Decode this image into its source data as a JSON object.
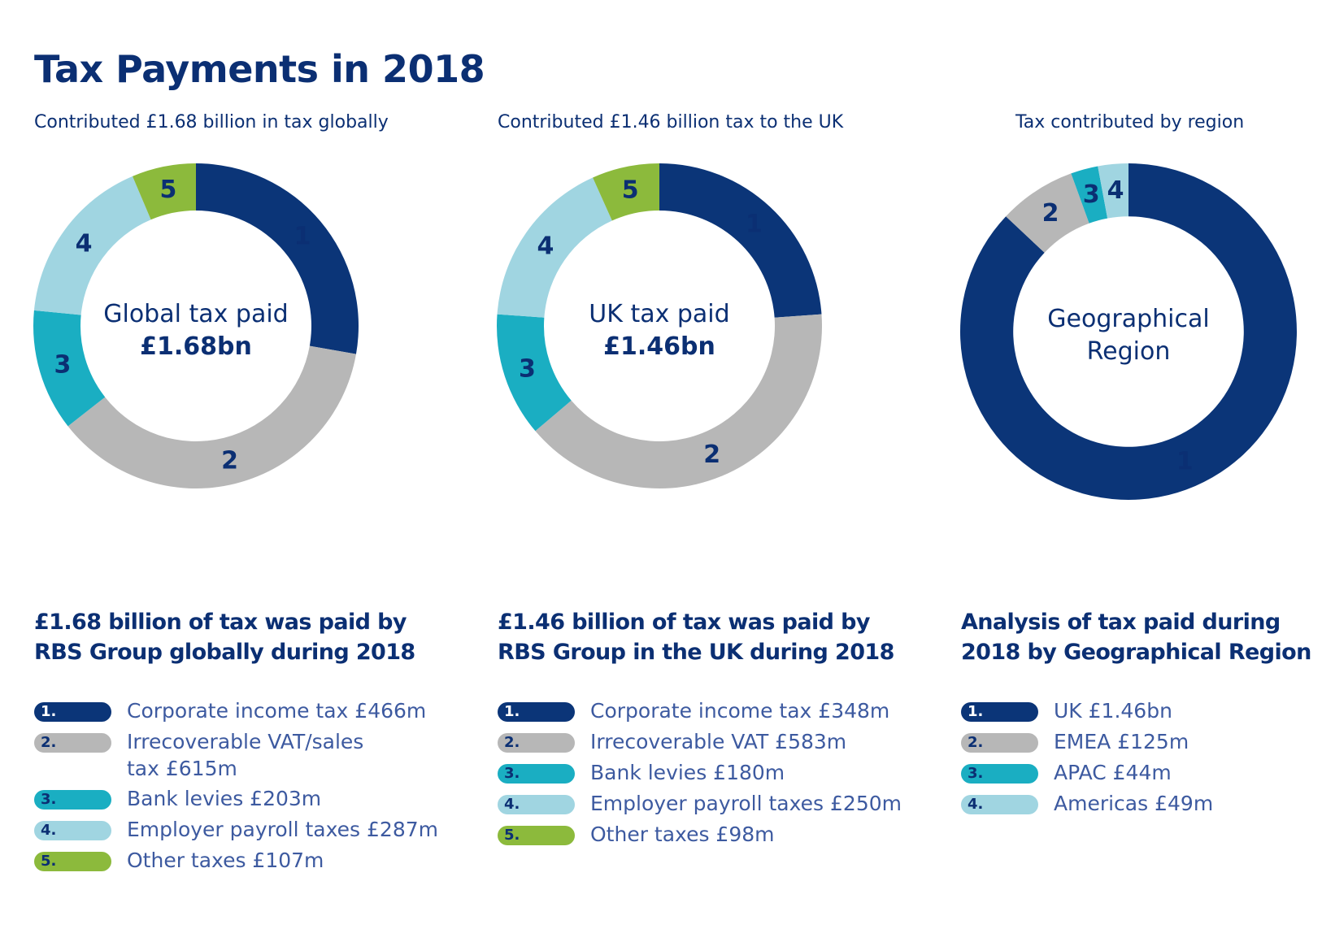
{
  "title": "Tax Payments in 2018",
  "colors": {
    "navy": "#0b3578",
    "grey": "#b7b7b7",
    "teal": "#1aaec2",
    "light_blue": "#a0d5e1",
    "green": "#8cba3c"
  },
  "panels": [
    {
      "subtitle": "Contributed £1.68 billion in tax globally",
      "center_label": "Global tax paid",
      "center_value": "£1.68bn",
      "heading_lines": [
        "£1.68 billion of tax was paid by",
        "RBS Group globally during 2018"
      ],
      "legend": [
        {
          "num": "1.",
          "text_lines": [
            "Corporate income tax £466m"
          ]
        },
        {
          "num": "2.",
          "text_lines": [
            "Irrecoverable VAT/sales",
            "tax £615m"
          ]
        },
        {
          "num": "3.",
          "text_lines": [
            "Bank levies £203m"
          ]
        },
        {
          "num": "4.",
          "text_lines": [
            "Employer payroll taxes £287m"
          ]
        },
        {
          "num": "5.",
          "text_lines": [
            "Other taxes £107m"
          ]
        }
      ]
    },
    {
      "subtitle": "Contributed £1.46 billion tax to the UK",
      "center_label": "UK tax paid",
      "center_value": "£1.46bn",
      "heading_lines": [
        "£1.46 billion of tax was paid by",
        "RBS Group in the UK during 2018"
      ],
      "legend": [
        {
          "num": "1.",
          "text_lines": [
            "Corporate income tax £348m"
          ]
        },
        {
          "num": "2.",
          "text_lines": [
            "Irrecoverable VAT £583m"
          ]
        },
        {
          "num": "3.",
          "text_lines": [
            "Bank levies £180m"
          ]
        },
        {
          "num": "4.",
          "text_lines": [
            "Employer payroll taxes £250m"
          ]
        },
        {
          "num": "5.",
          "text_lines": [
            "Other taxes £98m"
          ]
        }
      ]
    },
    {
      "subtitle": "Tax contributed by region",
      "center_label_lines": [
        "Geographical",
        "Region"
      ],
      "heading_lines": [
        "Analysis of tax paid during",
        "2018 by Geographical Region"
      ],
      "legend": [
        {
          "num": "1.",
          "text_lines": [
            "UK £1.46bn"
          ]
        },
        {
          "num": "2.",
          "text_lines": [
            "EMEA £125m"
          ]
        },
        {
          "num": "3.",
          "text_lines": [
            "APAC £44m"
          ]
        },
        {
          "num": "4.",
          "text_lines": [
            "Americas £49m"
          ]
        }
      ]
    }
  ],
  "chart_data": [
    {
      "type": "pie",
      "donut": true,
      "title": "Contributed £1.68 billion in tax globally",
      "categories": [
        "1",
        "2",
        "3",
        "4",
        "5"
      ],
      "values": [
        466,
        615,
        203,
        287,
        107
      ],
      "unit": "£m",
      "colors": [
        "navy",
        "grey",
        "teal",
        "light_blue",
        "green"
      ]
    },
    {
      "type": "pie",
      "donut": true,
      "title": "Contributed £1.46 billion tax to the UK",
      "categories": [
        "1",
        "2",
        "3",
        "4",
        "5"
      ],
      "values": [
        348,
        583,
        180,
        250,
        98
      ],
      "unit": "£m",
      "colors": [
        "navy",
        "grey",
        "teal",
        "light_blue",
        "green"
      ]
    },
    {
      "type": "pie",
      "donut": true,
      "title": "Tax contributed by region",
      "categories": [
        "1",
        "2",
        "3",
        "4"
      ],
      "values": [
        1460,
        125,
        44,
        49
      ],
      "unit": "£m",
      "colors": [
        "navy",
        "grey",
        "teal",
        "light_blue"
      ]
    }
  ]
}
